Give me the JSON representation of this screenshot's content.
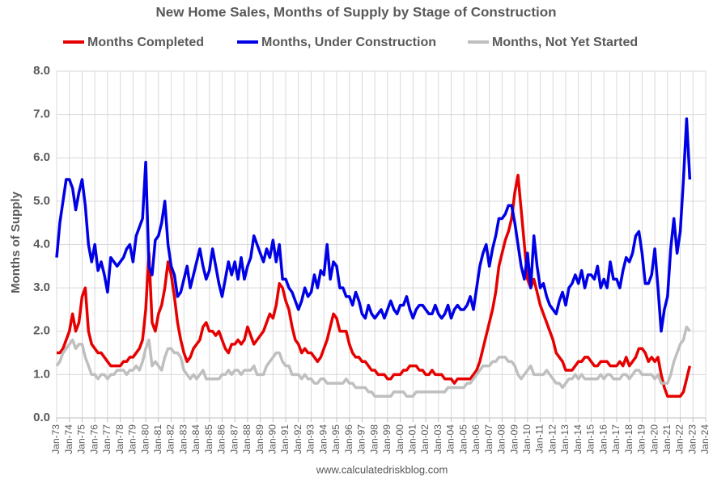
{
  "chart_data": {
    "type": "line",
    "title": "New Home Sales, Months of Supply by Stage of Construction",
    "y_label": "Months of Supply",
    "source": "www.calculatedriskblog.com",
    "grid": true,
    "legend": "top",
    "x": [
      "1973-01",
      "1973-04",
      "1973-07",
      "1973-10",
      "1974-01",
      "1974-04",
      "1974-07",
      "1974-10",
      "1975-01",
      "1975-04",
      "1975-07",
      "1975-10",
      "1976-01",
      "1976-04",
      "1976-07",
      "1976-10",
      "1977-01",
      "1977-04",
      "1977-07",
      "1977-10",
      "1978-01",
      "1978-04",
      "1978-07",
      "1978-10",
      "1979-01",
      "1979-04",
      "1979-07",
      "1979-10",
      "1980-01",
      "1980-04",
      "1980-07",
      "1980-10",
      "1981-01",
      "1981-04",
      "1981-07",
      "1981-10",
      "1982-01",
      "1982-04",
      "1982-07",
      "1982-10",
      "1983-01",
      "1983-04",
      "1983-07",
      "1983-10",
      "1984-01",
      "1984-04",
      "1984-07",
      "1984-10",
      "1985-01",
      "1985-04",
      "1985-07",
      "1985-10",
      "1986-01",
      "1986-04",
      "1986-07",
      "1986-10",
      "1987-01",
      "1987-04",
      "1987-07",
      "1987-10",
      "1988-01",
      "1988-04",
      "1988-07",
      "1988-10",
      "1989-01",
      "1989-04",
      "1989-07",
      "1989-10",
      "1990-01",
      "1990-04",
      "1990-07",
      "1990-10",
      "1991-01",
      "1991-04",
      "1991-07",
      "1991-10",
      "1992-01",
      "1992-04",
      "1992-07",
      "1992-10",
      "1993-01",
      "1993-04",
      "1993-07",
      "1993-10",
      "1994-01",
      "1994-04",
      "1994-07",
      "1994-10",
      "1995-01",
      "1995-04",
      "1995-07",
      "1995-10",
      "1996-01",
      "1996-04",
      "1996-07",
      "1996-10",
      "1997-01",
      "1997-04",
      "1997-07",
      "1997-10",
      "1998-01",
      "1998-04",
      "1998-07",
      "1998-10",
      "1999-01",
      "1999-04",
      "1999-07",
      "1999-10",
      "2000-01",
      "2000-04",
      "2000-07",
      "2000-10",
      "2001-01",
      "2001-04",
      "2001-07",
      "2001-10",
      "2002-01",
      "2002-04",
      "2002-07",
      "2002-10",
      "2003-01",
      "2003-04",
      "2003-07",
      "2003-10",
      "2004-01",
      "2004-04",
      "2004-07",
      "2004-10",
      "2005-01",
      "2005-04",
      "2005-07",
      "2005-10",
      "2006-01",
      "2006-04",
      "2006-07",
      "2006-10",
      "2007-01",
      "2007-04",
      "2007-07",
      "2007-10",
      "2008-01",
      "2008-04",
      "2008-07",
      "2008-10",
      "2009-01",
      "2009-04",
      "2009-07",
      "2009-10",
      "2010-01",
      "2010-04",
      "2010-07",
      "2010-10",
      "2011-01",
      "2011-04",
      "2011-07",
      "2011-10",
      "2012-01",
      "2012-04",
      "2012-07",
      "2012-10",
      "2013-01",
      "2013-04",
      "2013-07",
      "2013-10",
      "2014-01",
      "2014-04",
      "2014-07",
      "2014-10",
      "2015-01",
      "2015-04",
      "2015-07",
      "2015-10",
      "2016-01",
      "2016-04",
      "2016-07",
      "2016-10",
      "2017-01",
      "2017-04",
      "2017-07",
      "2017-10",
      "2018-01",
      "2018-04",
      "2018-07",
      "2018-10",
      "2019-01",
      "2019-04",
      "2019-07",
      "2019-10",
      "2020-01",
      "2020-04",
      "2020-07",
      "2020-10",
      "2021-01",
      "2021-04",
      "2021-07",
      "2021-10",
      "2022-01",
      "2022-04",
      "2022-07",
      "2022-10"
    ],
    "series": [
      {
        "name": "Months Completed",
        "color": "#e60000",
        "values": [
          1.5,
          1.5,
          1.6,
          1.8,
          2.0,
          2.4,
          2.0,
          2.2,
          2.8,
          3.0,
          2.0,
          1.7,
          1.6,
          1.5,
          1.5,
          1.4,
          1.3,
          1.2,
          1.2,
          1.2,
          1.2,
          1.3,
          1.3,
          1.4,
          1.4,
          1.5,
          1.6,
          1.8,
          2.5,
          3.8,
          2.2,
          2.0,
          2.4,
          2.6,
          3.0,
          3.6,
          3.3,
          2.8,
          2.2,
          1.8,
          1.5,
          1.3,
          1.4,
          1.6,
          1.7,
          1.8,
          2.1,
          2.2,
          2.0,
          2.0,
          1.9,
          2.0,
          1.8,
          1.6,
          1.5,
          1.7,
          1.7,
          1.8,
          1.7,
          1.8,
          2.1,
          1.9,
          1.7,
          1.8,
          1.9,
          2.0,
          2.2,
          2.4,
          2.3,
          2.6,
          3.1,
          3.0,
          2.7,
          2.5,
          2.1,
          1.8,
          1.7,
          1.5,
          1.6,
          1.5,
          1.5,
          1.4,
          1.3,
          1.4,
          1.6,
          1.8,
          2.1,
          2.4,
          2.3,
          2.0,
          2.0,
          2.0,
          1.7,
          1.5,
          1.4,
          1.4,
          1.3,
          1.3,
          1.2,
          1.1,
          1.1,
          1.0,
          1.0,
          1.0,
          0.9,
          0.9,
          1.0,
          1.0,
          1.0,
          1.1,
          1.1,
          1.2,
          1.2,
          1.2,
          1.1,
          1.1,
          1.0,
          1.0,
          1.1,
          1.0,
          1.0,
          1.0,
          0.9,
          0.9,
          0.9,
          0.8,
          0.9,
          0.9,
          0.9,
          0.9,
          0.9,
          1.0,
          1.1,
          1.3,
          1.6,
          1.9,
          2.2,
          2.5,
          2.9,
          3.5,
          3.8,
          4.1,
          4.3,
          4.6,
          5.2,
          5.6,
          4.8,
          4.0,
          3.2,
          3.0,
          3.2,
          2.9,
          2.6,
          2.4,
          2.2,
          2.0,
          1.8,
          1.5,
          1.4,
          1.3,
          1.1,
          1.1,
          1.1,
          1.2,
          1.3,
          1.3,
          1.4,
          1.4,
          1.3,
          1.2,
          1.2,
          1.3,
          1.3,
          1.3,
          1.2,
          1.2,
          1.2,
          1.3,
          1.2,
          1.4,
          1.2,
          1.3,
          1.4,
          1.6,
          1.6,
          1.5,
          1.3,
          1.4,
          1.3,
          1.4,
          1.0,
          0.7,
          0.5,
          0.5,
          0.5,
          0.5,
          0.5,
          0.6,
          0.9,
          1.2
        ]
      },
      {
        "name": "Months, Under Construction",
        "color": "#0000e6",
        "values": [
          3.7,
          4.5,
          5.0,
          5.5,
          5.5,
          5.3,
          4.8,
          5.2,
          5.5,
          4.9,
          4.0,
          3.6,
          4.0,
          3.4,
          3.6,
          3.3,
          2.9,
          3.7,
          3.6,
          3.5,
          3.6,
          3.7,
          3.9,
          4.0,
          3.6,
          4.2,
          4.4,
          4.6,
          5.9,
          3.5,
          3.3,
          4.1,
          4.2,
          4.5,
          5.0,
          4.0,
          3.5,
          3.3,
          2.8,
          2.9,
          3.2,
          3.5,
          3.0,
          3.3,
          3.6,
          3.9,
          3.5,
          3.2,
          3.4,
          3.9,
          3.5,
          3.1,
          2.8,
          3.2,
          3.6,
          3.3,
          3.6,
          3.2,
          3.7,
          3.2,
          3.5,
          3.7,
          4.2,
          4.0,
          3.8,
          3.6,
          3.9,
          3.7,
          4.1,
          3.6,
          4.0,
          3.2,
          3.2,
          3.0,
          2.9,
          2.7,
          2.5,
          2.7,
          3.0,
          2.8,
          2.9,
          3.3,
          3.0,
          3.4,
          3.3,
          4.0,
          3.2,
          3.6,
          3.5,
          3.0,
          3.0,
          2.8,
          2.8,
          2.6,
          2.9,
          2.7,
          2.4,
          2.3,
          2.6,
          2.4,
          2.3,
          2.4,
          2.5,
          2.3,
          2.5,
          2.7,
          2.5,
          2.4,
          2.6,
          2.6,
          2.8,
          2.5,
          2.3,
          2.5,
          2.6,
          2.6,
          2.5,
          2.4,
          2.4,
          2.6,
          2.4,
          2.3,
          2.4,
          2.6,
          2.3,
          2.5,
          2.6,
          2.5,
          2.5,
          2.6,
          2.8,
          2.5,
          3.0,
          3.5,
          3.8,
          4.0,
          3.5,
          3.9,
          4.2,
          4.6,
          4.6,
          4.7,
          4.9,
          4.9,
          4.5,
          4.0,
          3.5,
          3.2,
          3.8,
          3.0,
          4.2,
          3.5,
          3.0,
          3.1,
          2.8,
          2.6,
          2.5,
          2.4,
          2.7,
          2.9,
          2.6,
          3.0,
          3.1,
          3.3,
          3.1,
          3.4,
          3.0,
          3.3,
          3.3,
          3.2,
          3.5,
          3.0,
          3.2,
          3.0,
          3.6,
          3.2,
          3.2,
          3.0,
          3.4,
          3.7,
          3.6,
          3.8,
          4.2,
          4.3,
          3.8,
          3.1,
          3.1,
          3.3,
          3.9,
          3.0,
          2.0,
          2.5,
          2.8,
          3.9,
          4.6,
          3.8,
          4.3,
          5.5,
          6.9,
          5.5
        ]
      },
      {
        "name": "Months, Not Yet Started",
        "color": "#bfbfbf",
        "values": [
          1.2,
          1.3,
          1.5,
          1.6,
          1.7,
          1.8,
          1.6,
          1.7,
          1.7,
          1.4,
          1.2,
          1.0,
          1.0,
          0.9,
          1.0,
          1.0,
          0.9,
          1.0,
          1.0,
          1.1,
          1.1,
          1.1,
          1.0,
          1.1,
          1.1,
          1.2,
          1.1,
          1.3,
          1.6,
          1.8,
          1.2,
          1.3,
          1.2,
          1.1,
          1.4,
          1.6,
          1.6,
          1.5,
          1.5,
          1.4,
          1.1,
          1.0,
          0.9,
          1.0,
          0.9,
          1.0,
          1.1,
          0.9,
          0.9,
          0.9,
          0.9,
          0.9,
          1.0,
          1.0,
          1.1,
          1.0,
          1.1,
          1.1,
          1.0,
          1.1,
          1.1,
          1.1,
          1.2,
          1.0,
          1.0,
          1.0,
          1.2,
          1.3,
          1.4,
          1.5,
          1.5,
          1.3,
          1.2,
          1.2,
          1.0,
          1.0,
          1.0,
          0.9,
          1.0,
          0.9,
          0.9,
          0.8,
          0.8,
          0.9,
          0.9,
          0.8,
          0.8,
          0.8,
          0.8,
          0.8,
          0.8,
          0.9,
          0.8,
          0.8,
          0.7,
          0.7,
          0.7,
          0.7,
          0.6,
          0.6,
          0.5,
          0.5,
          0.5,
          0.5,
          0.5,
          0.5,
          0.6,
          0.6,
          0.6,
          0.6,
          0.5,
          0.5,
          0.5,
          0.6,
          0.6,
          0.6,
          0.6,
          0.6,
          0.6,
          0.6,
          0.6,
          0.6,
          0.6,
          0.7,
          0.7,
          0.7,
          0.7,
          0.7,
          0.7,
          0.8,
          0.8,
          0.9,
          1.0,
          1.1,
          1.2,
          1.2,
          1.2,
          1.3,
          1.3,
          1.4,
          1.4,
          1.4,
          1.3,
          1.3,
          1.2,
          1.0,
          0.9,
          1.0,
          1.1,
          1.2,
          1.0,
          1.0,
          1.0,
          1.0,
          1.1,
          1.0,
          0.9,
          0.8,
          0.8,
          0.7,
          0.8,
          0.9,
          0.9,
          1.0,
          0.9,
          1.0,
          0.9,
          0.9,
          0.9,
          0.9,
          0.9,
          1.0,
          0.9,
          1.0,
          1.0,
          0.9,
          0.9,
          0.9,
          1.0,
          1.0,
          0.9,
          1.0,
          1.1,
          1.1,
          1.0,
          1.0,
          1.0,
          1.0,
          0.9,
          1.0,
          0.8,
          0.8,
          0.8,
          1.0,
          1.3,
          1.5,
          1.7,
          1.8,
          2.1,
          2.0
        ]
      }
    ],
    "xlim": [
      "1973-01",
      "2024-01"
    ],
    "xticks": [
      {
        "value": "1973-01",
        "label": "Jan-73"
      },
      {
        "value": "1974-01",
        "label": "Jan-74"
      },
      {
        "value": "1975-01",
        "label": "Jan-75"
      },
      {
        "value": "1976-01",
        "label": "Jan-76"
      },
      {
        "value": "1977-01",
        "label": "Jan-77"
      },
      {
        "value": "1978-01",
        "label": "Jan-78"
      },
      {
        "value": "1979-01",
        "label": "Jan-79"
      },
      {
        "value": "1980-01",
        "label": "Jan-80"
      },
      {
        "value": "1981-01",
        "label": "Jan-81"
      },
      {
        "value": "1982-01",
        "label": "Jan-82"
      },
      {
        "value": "1983-01",
        "label": "Jan-83"
      },
      {
        "value": "1984-01",
        "label": "Jan-84"
      },
      {
        "value": "1985-01",
        "label": "Jan-85"
      },
      {
        "value": "1986-01",
        "label": "Jan-86"
      },
      {
        "value": "1987-01",
        "label": "Jan-87"
      },
      {
        "value": "1988-01",
        "label": "Jan-88"
      },
      {
        "value": "1989-01",
        "label": "Jan-89"
      },
      {
        "value": "1990-01",
        "label": "Jan-90"
      },
      {
        "value": "1991-01",
        "label": "Jan-91"
      },
      {
        "value": "1992-01",
        "label": "Jan-92"
      },
      {
        "value": "1993-01",
        "label": "Jan-93"
      },
      {
        "value": "1994-01",
        "label": "Jan-94"
      },
      {
        "value": "1995-01",
        "label": "Jan-95"
      },
      {
        "value": "1996-01",
        "label": "Jan-96"
      },
      {
        "value": "1997-01",
        "label": "Jan-97"
      },
      {
        "value": "1998-01",
        "label": "Jan-98"
      },
      {
        "value": "1999-01",
        "label": "Jan-99"
      },
      {
        "value": "2000-01",
        "label": "Jan-00"
      },
      {
        "value": "2001-01",
        "label": "Jan-01"
      },
      {
        "value": "2002-01",
        "label": "Jan-02"
      },
      {
        "value": "2003-01",
        "label": "Jan-03"
      },
      {
        "value": "2004-01",
        "label": "Jan-04"
      },
      {
        "value": "2005-01",
        "label": "Jan-05"
      },
      {
        "value": "2006-01",
        "label": "Jan-06"
      },
      {
        "value": "2007-01",
        "label": "Jan-07"
      },
      {
        "value": "2008-01",
        "label": "Jan-08"
      },
      {
        "value": "2009-01",
        "label": "Jan-09"
      },
      {
        "value": "2010-01",
        "label": "Jan-10"
      },
      {
        "value": "2011-01",
        "label": "Jan-11"
      },
      {
        "value": "2012-01",
        "label": "Jan-12"
      },
      {
        "value": "2013-01",
        "label": "Jan-13"
      },
      {
        "value": "2014-01",
        "label": "Jan-14"
      },
      {
        "value": "2015-01",
        "label": "Jan-15"
      },
      {
        "value": "2016-01",
        "label": "Jan-16"
      },
      {
        "value": "2017-01",
        "label": "Jan-17"
      },
      {
        "value": "2018-01",
        "label": "Jan-18"
      },
      {
        "value": "2019-01",
        "label": "Jan-19"
      },
      {
        "value": "2020-01",
        "label": "Jan-20"
      },
      {
        "value": "2021-01",
        "label": "Jan-21"
      },
      {
        "value": "2022-01",
        "label": "Jan-22"
      },
      {
        "value": "2023-01",
        "label": "Jan-23"
      },
      {
        "value": "2024-01",
        "label": "Jan-24"
      }
    ],
    "ylim": [
      0,
      8
    ],
    "yticks": [
      {
        "value": 0,
        "label": "0.0"
      },
      {
        "value": 1,
        "label": "1.0"
      },
      {
        "value": 2,
        "label": "2.0"
      },
      {
        "value": 3,
        "label": "3.0"
      },
      {
        "value": 4,
        "label": "4.0"
      },
      {
        "value": 5,
        "label": "5.0"
      },
      {
        "value": 6,
        "label": "6.0"
      },
      {
        "value": 7,
        "label": "7.0"
      },
      {
        "value": 8,
        "label": "8.0"
      }
    ]
  }
}
